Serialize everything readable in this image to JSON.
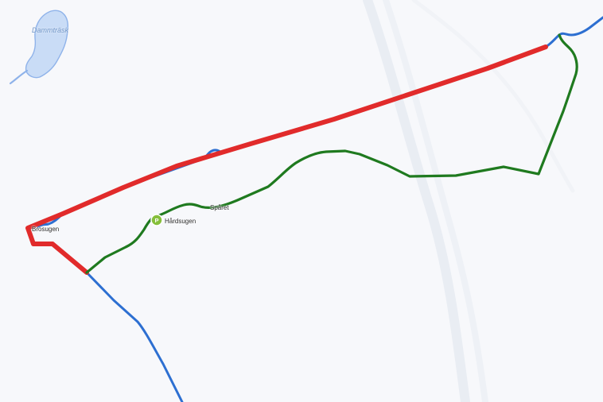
{
  "map": {
    "water_label": "Dammträsk",
    "poi_label": "Hårdsugen",
    "left_label": "Brosugen",
    "trail_label": "Spåret",
    "colors": {
      "background": "#f7f8fb",
      "red_route": "#e12b2b",
      "blue_route": "#2d6fd1",
      "green_route": "#1f7a1f",
      "water_fill": "#c9dcf6",
      "water_edge": "#8fb3ea",
      "road_faint": "#e6e9f1",
      "poi_circle": "#86bf3b"
    },
    "icons": {
      "poi": "parking-icon"
    }
  }
}
